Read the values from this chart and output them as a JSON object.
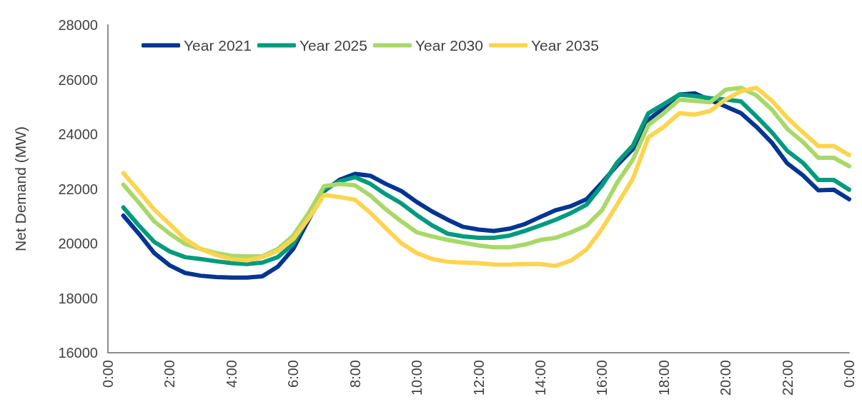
{
  "chart_data": {
    "type": "line",
    "ylabel": "Net Demand (MW)",
    "x": [
      0.5,
      1,
      1.5,
      2,
      2.5,
      3,
      3.5,
      4,
      4.5,
      5,
      5.5,
      6,
      6.5,
      7,
      7.5,
      8,
      8.5,
      9,
      9.5,
      10,
      10.5,
      11,
      11.5,
      12,
      12.5,
      13,
      13.5,
      14,
      14.5,
      15,
      15.5,
      16,
      16.5,
      17,
      17.5,
      18,
      18.5,
      19,
      19.5,
      20,
      20.5,
      21,
      21.5,
      22,
      22.5,
      23,
      23.5,
      24
    ],
    "xlim": [
      0,
      24
    ],
    "xticks": [
      {
        "value": 0,
        "label": "0:00"
      },
      {
        "value": 2,
        "label": "2:00"
      },
      {
        "value": 4,
        "label": "4:00"
      },
      {
        "value": 6,
        "label": "6:00"
      },
      {
        "value": 8,
        "label": "8:00"
      },
      {
        "value": 10,
        "label": "10:00"
      },
      {
        "value": 12,
        "label": "12:00"
      },
      {
        "value": 14,
        "label": "14:00"
      },
      {
        "value": 16,
        "label": "16:00"
      },
      {
        "value": 18,
        "label": "18:00"
      },
      {
        "value": 20,
        "label": "20:00"
      },
      {
        "value": 22,
        "label": "22:00"
      },
      {
        "value": 24,
        "label": "0:00"
      }
    ],
    "ylim": [
      16000,
      28000
    ],
    "yticks": [
      16000,
      18000,
      20000,
      22000,
      24000,
      26000,
      28000
    ],
    "grid": false,
    "legend": "top left",
    "marker": "none",
    "line_style": "solid",
    "series": [
      {
        "name": "Year 2021",
        "color": "#003591",
        "values": [
          21020,
          20360,
          19650,
          19200,
          18920,
          18820,
          18770,
          18750,
          18750,
          18800,
          19150,
          19800,
          20870,
          21920,
          22330,
          22550,
          22480,
          22180,
          21920,
          21520,
          21170,
          20870,
          20610,
          20510,
          20460,
          20540,
          20710,
          20970,
          21220,
          21370,
          21620,
          22230,
          22880,
          23460,
          24520,
          24970,
          25450,
          25500,
          25250,
          25020,
          24770,
          24270,
          23690,
          22930,
          22500,
          21950,
          21970,
          21620
        ]
      },
      {
        "name": "Year 2025",
        "color": "#009a7e",
        "values": [
          21320,
          20660,
          20060,
          19710,
          19500,
          19430,
          19350,
          19280,
          19250,
          19300,
          19500,
          19980,
          20990,
          21970,
          22280,
          22430,
          22180,
          21800,
          21470,
          21040,
          20660,
          20360,
          20260,
          20210,
          20210,
          20290,
          20460,
          20660,
          20870,
          21120,
          21420,
          22130,
          22980,
          23590,
          24770,
          25100,
          25450,
          25400,
          25320,
          25270,
          25200,
          24650,
          24070,
          23390,
          22960,
          22330,
          22330,
          21970
        ]
      },
      {
        "name": "Year 2030",
        "color": "#a8d968",
        "values": [
          22150,
          21500,
          20810,
          20360,
          19980,
          19800,
          19650,
          19550,
          19530,
          19530,
          19800,
          20290,
          21120,
          22100,
          22180,
          22130,
          21750,
          21250,
          20810,
          20410,
          20260,
          20130,
          20030,
          19930,
          19860,
          19860,
          19960,
          20130,
          20210,
          20410,
          20660,
          21220,
          22250,
          23080,
          24340,
          24770,
          25270,
          25220,
          25170,
          25630,
          25700,
          25420,
          24900,
          24190,
          23720,
          23140,
          23140,
          22830
        ]
      },
      {
        "name": "Year 2035",
        "color": "#fdd44f",
        "values": [
          22580,
          21920,
          21240,
          20710,
          20160,
          19800,
          19580,
          19430,
          19380,
          19500,
          19730,
          20160,
          20920,
          21780,
          21700,
          21600,
          21120,
          20560,
          20010,
          19650,
          19430,
          19330,
          19300,
          19280,
          19230,
          19230,
          19250,
          19250,
          19180,
          19380,
          19780,
          20540,
          21450,
          22380,
          23890,
          24270,
          24770,
          24720,
          24850,
          25270,
          25580,
          25700,
          25230,
          24600,
          24070,
          23570,
          23570,
          23240
        ]
      }
    ]
  }
}
